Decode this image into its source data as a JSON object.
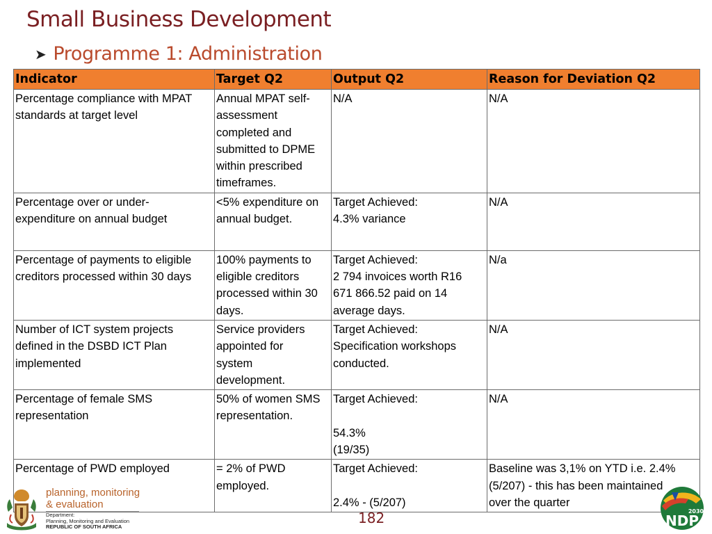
{
  "slide": {
    "title": "Small Business Development",
    "subtitle": "Programme 1: Administration",
    "page_number": "182"
  },
  "table": {
    "headers": [
      "Indicator",
      "Target Q2",
      "Output Q2",
      "Reason for Deviation Q2"
    ],
    "rows": [
      {
        "indicator": "Percentage compliance with MPAT standards at target level",
        "target": "Annual MPAT self-\nassessment\ncompleted and\nsubmitted to DPME\nwithin prescribed\ntimeframes.",
        "output": "N/A",
        "reason": "N/A"
      },
      {
        "indicator": "Percentage over or under-\nexpenditure on annual budget",
        "target": "<5% expenditure on\nannual budget.",
        "output": "Target Achieved:\n4.3% variance",
        "reason": "N/A"
      },
      {
        "indicator": "Percentage of payments to eligible\ncreditors processed within 30 days",
        "target": "100% payments to\neligible creditors\nprocessed within 30\ndays.",
        "output": "Target Achieved:\n2 794 invoices worth R16\n671 866.52 paid on 14\naverage days.",
        "reason": "N/a"
      },
      {
        "indicator": "Number of ICT system projects\ndefined in the DSBD ICT Plan\nimplemented",
        "target": "Service providers\nappointed for\nsystem\ndevelopment.",
        "output": "Target Achieved:\nSpecification workshops\nconducted.",
        "reason": "N/A"
      },
      {
        "indicator": "Percentage of female SMS\nrepresentation",
        "target": "50% of women SMS\nrepresentation.",
        "output": "Target Achieved:\n\n54.3%\n(19/35)",
        "reason": "N/A"
      },
      {
        "indicator": "Percentage of PWD employed",
        "target": "= 2% of PWD\nemployed.",
        "output": "Target Achieved:\n\n2.4% - (5/207)",
        "reason": "Baseline was 3,1% on YTD i.e. 2.4%\n(5/207) - this has been maintained\nover the quarter"
      }
    ]
  },
  "footer": {
    "pme_line1": "planning, monitoring",
    "pme_line2": "& evaluation",
    "dept_line1": "Department:",
    "dept_line2": "Planning, Monitoring and Evaluation",
    "dept_line3": "REPUBLIC OF SOUTH AFRICA",
    "ndp_text": "NDP",
    "ndp_year": "2030"
  },
  "colors": {
    "title": "#7a1f22",
    "subtitle": "#b94a2c",
    "header_fill": "#f07f2f",
    "border": "#6b6b6b"
  },
  "icons": [
    "arrow-bullet-icon",
    "sa-coat-of-arms-icon",
    "ndp-2030-logo-icon"
  ]
}
